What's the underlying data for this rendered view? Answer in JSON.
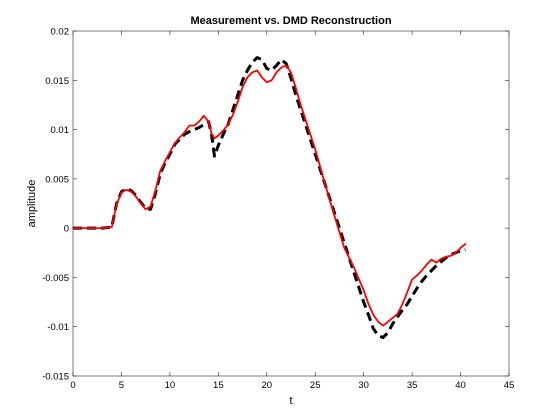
{
  "chart_data": {
    "type": "line",
    "title": "Measurement vs. DMD Reconstruction",
    "xlabel": "t",
    "ylabel": "amplitude",
    "xlim": [
      0,
      45
    ],
    "ylim": [
      -0.015,
      0.02
    ],
    "xticks": [
      "0",
      "5",
      "10",
      "15",
      "20",
      "25",
      "30",
      "35",
      "40",
      "45"
    ],
    "yticks": [
      "-0.015",
      "-0.01",
      "-0.005",
      "0",
      "0.005",
      "0.01",
      "0.015",
      "0.02"
    ],
    "grid": false,
    "legend": false,
    "series": [
      {
        "color": "#000000",
        "style": "dashed",
        "x": [
          0.0,
          1.0,
          2.0,
          3.0,
          4.0,
          4.5,
          5.0,
          5.5,
          6.0,
          6.5,
          7.0,
          7.5,
          8.0,
          8.5,
          9.0,
          9.5,
          10.0,
          10.5,
          11.0,
          11.5,
          12.0,
          12.5,
          13.0,
          13.5,
          14.0,
          14.3,
          14.6,
          15.0,
          15.5,
          16.0,
          16.5,
          17.0,
          17.5,
          18.0,
          18.5,
          19.0,
          19.5,
          20.0,
          20.5,
          21.0,
          21.5,
          22.0,
          22.5,
          23.0,
          23.5,
          24.0,
          25.0,
          26.0,
          27.0,
          28.0,
          29.0,
          30.0,
          30.5,
          31.0,
          31.5,
          32.0,
          32.5,
          33.0,
          33.5,
          34.0,
          34.5,
          35.0,
          35.5,
          36.0,
          36.5,
          37.0,
          37.5,
          38.0,
          38.5,
          39.0,
          39.5,
          40.0,
          40.5
        ],
        "y": [
          0.0,
          0.0,
          0.0,
          0.0,
          0.0001,
          0.0025,
          0.0037,
          0.004,
          0.0038,
          0.0033,
          0.0026,
          0.002,
          0.0019,
          0.0035,
          0.0055,
          0.0066,
          0.0075,
          0.0085,
          0.009,
          0.0095,
          0.0098,
          0.01,
          0.0102,
          0.0105,
          0.0108,
          0.0095,
          0.0073,
          0.0084,
          0.0095,
          0.0105,
          0.012,
          0.0135,
          0.015,
          0.016,
          0.0168,
          0.0173,
          0.0171,
          0.0162,
          0.016,
          0.0165,
          0.0171,
          0.0167,
          0.0152,
          0.0135,
          0.012,
          0.0105,
          0.0075,
          0.0045,
          0.0015,
          -0.0015,
          -0.0045,
          -0.0075,
          -0.0088,
          -0.0102,
          -0.0109,
          -0.0111,
          -0.0106,
          -0.0097,
          -0.009,
          -0.0083,
          -0.0077,
          -0.0069,
          -0.0061,
          -0.0054,
          -0.0048,
          -0.0043,
          -0.0038,
          -0.0034,
          -0.003,
          -0.0027,
          -0.0025,
          -0.0023,
          -0.0022
        ]
      },
      {
        "color": "#ff0000",
        "style": "solid",
        "x": [
          0.0,
          1.0,
          2.0,
          3.0,
          4.0,
          4.5,
          5.0,
          5.5,
          6.0,
          6.5,
          7.0,
          7.5,
          8.0,
          8.5,
          9.0,
          9.5,
          10.0,
          10.5,
          11.0,
          11.5,
          12.0,
          12.5,
          13.0,
          13.5,
          14.0,
          14.3,
          14.6,
          15.0,
          15.5,
          16.0,
          16.5,
          17.0,
          17.5,
          18.0,
          18.5,
          19.0,
          19.5,
          20.0,
          20.5,
          21.0,
          21.5,
          22.0,
          22.5,
          23.0,
          23.5,
          24.0,
          25.0,
          26.0,
          27.0,
          28.0,
          29.0,
          30.0,
          30.5,
          31.0,
          31.5,
          32.0,
          32.5,
          33.0,
          33.5,
          34.0,
          34.5,
          35.0,
          35.5,
          36.0,
          36.5,
          37.0,
          37.5,
          38.0,
          38.5,
          39.0,
          39.5,
          40.0,
          40.5
        ],
        "y": [
          0.0,
          0.0,
          0.0,
          0.0,
          0.0001,
          0.0024,
          0.0036,
          0.0039,
          0.0037,
          0.0032,
          0.0025,
          0.0019,
          0.0022,
          0.0038,
          0.0058,
          0.0068,
          0.0077,
          0.0086,
          0.0092,
          0.0097,
          0.0104,
          0.0104,
          0.0108,
          0.0114,
          0.0108,
          0.0096,
          0.0091,
          0.0094,
          0.0099,
          0.0105,
          0.0115,
          0.0128,
          0.0143,
          0.0153,
          0.0158,
          0.016,
          0.0153,
          0.0148,
          0.015,
          0.0158,
          0.0163,
          0.0165,
          0.0158,
          0.0142,
          0.0125,
          0.011,
          0.008,
          0.0045,
          0.0012,
          -0.002,
          -0.004,
          -0.0063,
          -0.0077,
          -0.0088,
          -0.0095,
          -0.0099,
          -0.0095,
          -0.0091,
          -0.0087,
          -0.0077,
          -0.0065,
          -0.0052,
          -0.0048,
          -0.0043,
          -0.0037,
          -0.0032,
          -0.0035,
          -0.0031,
          -0.0029,
          -0.0028,
          -0.0025,
          -0.002,
          -0.0016
        ]
      }
    ]
  }
}
